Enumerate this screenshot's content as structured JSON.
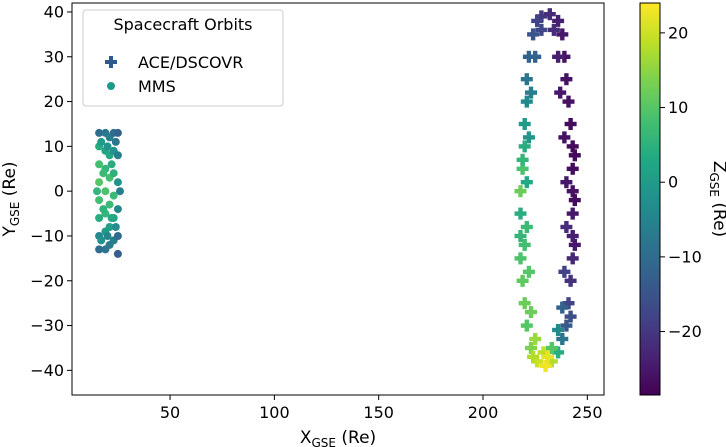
{
  "chart_data": {
    "type": "scatter",
    "xlabel": {
      "main": "X",
      "sub": "GSE",
      "unit": " (Re)"
    },
    "ylabel": {
      "main": "Y",
      "sub": "GSE",
      "unit": " (Re)"
    },
    "colorbar_label": {
      "main": "Z",
      "sub": "GSE",
      "unit": " (Re)"
    },
    "xlim": [
      3,
      258
    ],
    "ylim": [
      -45.5,
      42
    ],
    "xticks": [
      50,
      100,
      150,
      200,
      250
    ],
    "yticks": [
      -40,
      -30,
      -20,
      -10,
      0,
      10,
      20,
      30,
      40
    ],
    "colorbar_range": [
      -28.5,
      24
    ],
    "colorbar_ticks": [
      20,
      10,
      0,
      -10,
      -20
    ],
    "colormap": "viridis",
    "legend": {
      "title": "Spacecraft Orbits",
      "placement": "upper left",
      "entries": [
        {
          "label": "ACE/DSCOVR",
          "marker": "plus",
          "color": "#2d5a8c"
        },
        {
          "label": "MMS",
          "marker": "circle",
          "color": "#1f9a8a"
        }
      ]
    },
    "series": [
      {
        "name": "ACE/DSCOVR",
        "marker": "plus",
        "description_ring": {
          "x_range": [
            217,
            245
          ],
          "y_range": [
            -40,
            40
          ],
          "z_range": [
            -28,
            24
          ]
        },
        "points": [
          {
            "x": 228,
            "y": 39,
            "z": -20
          },
          {
            "x": 232,
            "y": 39.5,
            "z": -22
          },
          {
            "x": 236,
            "y": 38,
            "z": -24
          },
          {
            "x": 238,
            "y": 35,
            "z": -25
          },
          {
            "x": 239,
            "y": 30,
            "z": -26
          },
          {
            "x": 240,
            "y": 25,
            "z": -26
          },
          {
            "x": 241,
            "y": 20,
            "z": -26
          },
          {
            "x": 242,
            "y": 15,
            "z": -27
          },
          {
            "x": 243,
            "y": 10,
            "z": -27
          },
          {
            "x": 243,
            "y": 5,
            "z": -27
          },
          {
            "x": 243,
            "y": 0,
            "z": -26
          },
          {
            "x": 243,
            "y": -5,
            "z": -25
          },
          {
            "x": 243,
            "y": -10,
            "z": -24
          },
          {
            "x": 243,
            "y": -15,
            "z": -23
          },
          {
            "x": 242,
            "y": -20,
            "z": -21
          },
          {
            "x": 241,
            "y": -25,
            "z": -18
          },
          {
            "x": 240,
            "y": -30,
            "z": -14
          },
          {
            "x": 238,
            "y": -33,
            "z": -8
          },
          {
            "x": 236,
            "y": -36,
            "z": 4
          },
          {
            "x": 233,
            "y": -38,
            "z": 18
          },
          {
            "x": 230,
            "y": -39,
            "z": 23
          },
          {
            "x": 226,
            "y": -38,
            "z": 20
          },
          {
            "x": 223,
            "y": -35,
            "z": 14
          },
          {
            "x": 221,
            "y": -30,
            "z": 10
          },
          {
            "x": 220,
            "y": -25,
            "z": 12
          },
          {
            "x": 219,
            "y": -20,
            "z": 11
          },
          {
            "x": 218,
            "y": -15,
            "z": 9
          },
          {
            "x": 218,
            "y": -10,
            "z": 6
          },
          {
            "x": 218,
            "y": -5,
            "z": 4
          },
          {
            "x": 218,
            "y": 0,
            "z": 12
          },
          {
            "x": 219,
            "y": 5,
            "z": 9
          },
          {
            "x": 220,
            "y": 10,
            "z": 4
          },
          {
            "x": 220,
            "y": 15,
            "z": 0
          },
          {
            "x": 221,
            "y": 20,
            "z": -4
          },
          {
            "x": 221,
            "y": 25,
            "z": -8
          },
          {
            "x": 222,
            "y": 30,
            "z": -12
          },
          {
            "x": 224,
            "y": 35,
            "z": -15
          },
          {
            "x": 226,
            "y": 38,
            "z": -18
          },
          {
            "x": 234,
            "y": 36,
            "z": -22
          },
          {
            "x": 236,
            "y": 30,
            "z": -24
          },
          {
            "x": 237,
            "y": 22,
            "z": -25
          },
          {
            "x": 239,
            "y": 12,
            "z": -26
          },
          {
            "x": 240,
            "y": 2,
            "z": -25
          },
          {
            "x": 240,
            "y": -8,
            "z": -22
          },
          {
            "x": 239,
            "y": -18,
            "z": -18
          },
          {
            "x": 238,
            "y": -26,
            "z": -12
          },
          {
            "x": 236,
            "y": -31,
            "z": -4
          },
          {
            "x": 233,
            "y": -35,
            "z": 10
          },
          {
            "x": 229,
            "y": -36,
            "z": 19
          },
          {
            "x": 225,
            "y": -33,
            "z": 16
          },
          {
            "x": 223,
            "y": -27,
            "z": 12
          },
          {
            "x": 222,
            "y": -18,
            "z": 10
          },
          {
            "x": 221,
            "y": -8,
            "z": 7
          },
          {
            "x": 221,
            "y": 2,
            "z": 3
          },
          {
            "x": 222,
            "y": 12,
            "z": -1
          },
          {
            "x": 223,
            "y": 22,
            "z": -6
          },
          {
            "x": 225,
            "y": 30,
            "z": -12
          },
          {
            "x": 228,
            "y": 36,
            "z": -17
          },
          {
            "x": 244,
            "y": -2,
            "z": -27
          },
          {
            "x": 244,
            "y": -12,
            "z": -25
          },
          {
            "x": 244,
            "y": 8,
            "z": -27
          },
          {
            "x": 242,
            "y": -28,
            "z": -16
          },
          {
            "x": 220,
            "y": -12,
            "z": 8
          },
          {
            "x": 219,
            "y": 7,
            "z": 6
          },
          {
            "x": 224,
            "y": -37,
            "z": 18
          },
          {
            "x": 231,
            "y": -37,
            "z": 22
          }
        ]
      },
      {
        "name": "MMS",
        "marker": "circle",
        "description_band": {
          "x_range": [
            15,
            26
          ],
          "y_range": [
            -14,
            14
          ],
          "z_range": [
            -14,
            12
          ]
        },
        "points": [
          {
            "x": 16,
            "y": 13,
            "z": -10
          },
          {
            "x": 16,
            "y": 10,
            "z": 4
          },
          {
            "x": 16,
            "y": 6,
            "z": 8
          },
          {
            "x": 16,
            "y": 2,
            "z": 10
          },
          {
            "x": 16,
            "y": -2,
            "z": 8
          },
          {
            "x": 16,
            "y": -6,
            "z": 4
          },
          {
            "x": 16,
            "y": -10,
            "z": -4
          },
          {
            "x": 16,
            "y": -13,
            "z": -10
          },
          {
            "x": 19,
            "y": 13,
            "z": -8
          },
          {
            "x": 19,
            "y": 9,
            "z": 2
          },
          {
            "x": 19,
            "y": 5,
            "z": 6
          },
          {
            "x": 19,
            "y": 0,
            "z": 9
          },
          {
            "x": 19,
            "y": -5,
            "z": 6
          },
          {
            "x": 19,
            "y": -9,
            "z": 0
          },
          {
            "x": 19,
            "y": -13,
            "z": -8
          },
          {
            "x": 21,
            "y": 12,
            "z": -6
          },
          {
            "x": 21,
            "y": 8,
            "z": 3
          },
          {
            "x": 21,
            "y": 3,
            "z": 8
          },
          {
            "x": 21,
            "y": -3,
            "z": 7
          },
          {
            "x": 21,
            "y": -8,
            "z": 1
          },
          {
            "x": 21,
            "y": -12,
            "z": -7
          },
          {
            "x": 23,
            "y": 13,
            "z": -10
          },
          {
            "x": 23,
            "y": 9,
            "z": -2
          },
          {
            "x": 23,
            "y": 4,
            "z": 5
          },
          {
            "x": 23,
            "y": -1,
            "z": 7
          },
          {
            "x": 23,
            "y": -6,
            "z": 2
          },
          {
            "x": 23,
            "y": -11,
            "z": -6
          },
          {
            "x": 25,
            "y": 13,
            "z": -12
          },
          {
            "x": 25,
            "y": 8,
            "z": -6
          },
          {
            "x": 25,
            "y": 2,
            "z": -2
          },
          {
            "x": 25,
            "y": -4,
            "z": -4
          },
          {
            "x": 25,
            "y": -10,
            "z": -10
          },
          {
            "x": 25,
            "y": -14,
            "z": -13
          },
          {
            "x": 17,
            "y": 11,
            "z": 0
          },
          {
            "x": 17,
            "y": -11,
            "z": -2
          },
          {
            "x": 18,
            "y": 4,
            "z": 7
          },
          {
            "x": 18,
            "y": -4,
            "z": 5
          },
          {
            "x": 20,
            "y": 10,
            "z": -2
          },
          {
            "x": 20,
            "y": -10,
            "z": -5
          },
          {
            "x": 22,
            "y": 6,
            "z": 4
          },
          {
            "x": 22,
            "y": -6,
            "z": 3
          },
          {
            "x": 24,
            "y": 11,
            "z": -8
          },
          {
            "x": 24,
            "y": -8,
            "z": -3
          },
          {
            "x": 15,
            "y": 0,
            "z": 6
          },
          {
            "x": 26,
            "y": 0,
            "z": -6
          }
        ]
      }
    ]
  }
}
